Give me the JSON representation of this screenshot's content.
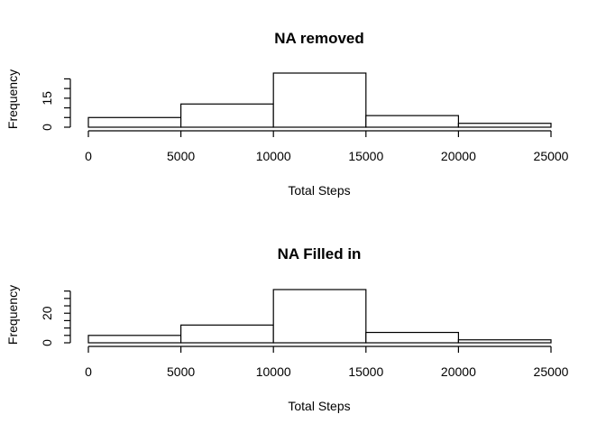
{
  "chart_data": [
    {
      "type": "bar",
      "title": "NA removed",
      "xlabel": "Total Steps",
      "ylabel": "Frequency",
      "bins": [
        [
          0,
          5000
        ],
        [
          5000,
          10000
        ],
        [
          10000,
          15000
        ],
        [
          15000,
          20000
        ],
        [
          20000,
          25000
        ]
      ],
      "values": [
        5,
        12,
        28,
        6,
        2
      ],
      "xlim": [
        0,
        25000
      ],
      "ylim": [
        0,
        28
      ],
      "xticks": [
        0,
        5000,
        10000,
        15000,
        20000,
        25000
      ],
      "xtick_labels": [
        "0",
        "5000",
        "10000",
        "15000",
        "20000",
        "25000"
      ],
      "yticks_minor": [
        0,
        5,
        10,
        15,
        20,
        25
      ],
      "yticks_labeled": [
        0,
        15
      ],
      "ytick_labels": [
        "0",
        "15"
      ],
      "grid": false
    },
    {
      "type": "bar",
      "title": "NA Filled in",
      "xlabel": "Total Steps",
      "ylabel": "Frequency",
      "bins": [
        [
          0,
          5000
        ],
        [
          5000,
          10000
        ],
        [
          10000,
          15000
        ],
        [
          15000,
          20000
        ],
        [
          20000,
          25000
        ]
      ],
      "values": [
        5,
        12,
        36,
        7,
        2
      ],
      "xlim": [
        0,
        25000
      ],
      "ylim": [
        0,
        36
      ],
      "xticks": [
        0,
        5000,
        10000,
        15000,
        20000,
        25000
      ],
      "xtick_labels": [
        "0",
        "5000",
        "10000",
        "15000",
        "20000",
        "25000"
      ],
      "yticks_minor": [
        0,
        5,
        10,
        15,
        20,
        25,
        30,
        35
      ],
      "yticks_labeled": [
        0,
        20
      ],
      "ytick_labels": [
        "0",
        "20"
      ],
      "grid": false
    }
  ]
}
